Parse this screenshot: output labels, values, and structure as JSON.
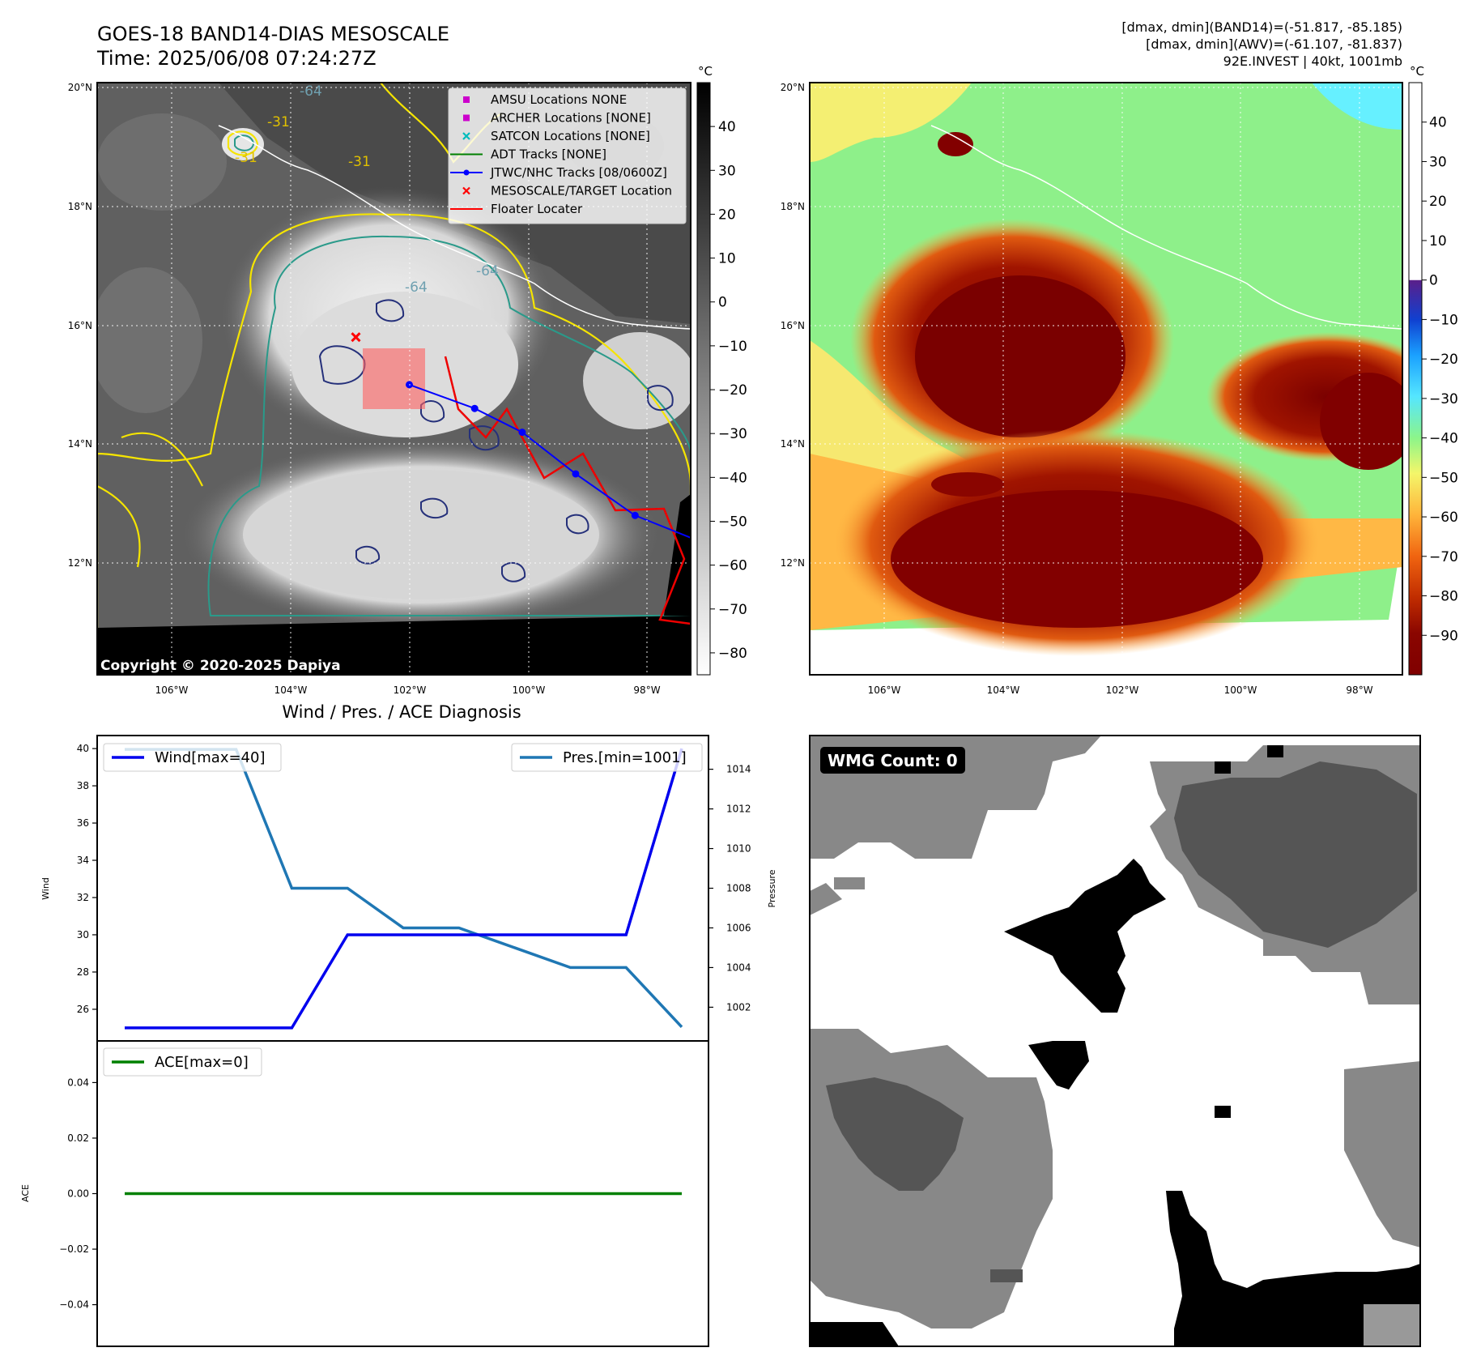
{
  "header": {
    "title": "GOES-18 BAND14-DIAS MESOSCALE",
    "time": "Time: 2025/06/08 07:24:27Z",
    "stats_band14": "[dmax, dmin](BAND14)=(-51.817, -85.185)",
    "stats_awv": "[dmax, dmin](AWV)=(-61.107, -81.837)",
    "storm_info": "92E.INVEST | 40kt, 1001mb"
  },
  "ir_panel": {
    "copyright": "Copyright © 2020-2025 Dapiya",
    "lat_labels": [
      "20°N",
      "18°N",
      "16°N",
      "14°N",
      "12°N"
    ],
    "lon_labels": [
      "106°W",
      "104°W",
      "102°W",
      "100°W",
      "98°W"
    ],
    "contour_labels": [
      "-64",
      "-31",
      "-31",
      "-31",
      "-64",
      "-64"
    ],
    "colorbar": {
      "unit": "°C",
      "ticks": [
        "40",
        "30",
        "20",
        "10",
        "0",
        "−10",
        "−20",
        "−30",
        "−40",
        "−50",
        "−60",
        "−70",
        "−80"
      ],
      "range": [
        -85,
        50
      ],
      "colors": [
        "#000000",
        "#ffffff"
      ]
    },
    "legend": [
      {
        "label": "AMSU Locations NONE",
        "marker": "square",
        "color": "#cc00cc"
      },
      {
        "label": "ARCHER Locations [NONE]",
        "marker": "square",
        "color": "#cc00cc"
      },
      {
        "label": "SATCON Locations [NONE]",
        "marker": "x",
        "color": "#00bbbb"
      },
      {
        "label": "ADT Tracks [NONE]",
        "marker": "line",
        "color": "#008000"
      },
      {
        "label": "JTWC/NHC Tracks [08/0600Z]",
        "marker": "line-dot",
        "color": "#0000ff"
      },
      {
        "label": "MESOSCALE/TARGET Location",
        "marker": "x",
        "color": "#ff0000"
      },
      {
        "label": "Floater Locater",
        "marker": "line",
        "color": "#ff0000"
      }
    ],
    "track_jtwc": [
      [
        -102.0,
        15.0
      ],
      [
        -100.9,
        14.6
      ],
      [
        -100.1,
        14.2
      ],
      [
        -99.2,
        13.5
      ],
      [
        -98.2,
        12.8
      ],
      [
        -97.2,
        12.4
      ]
    ],
    "target_location": [
      -102.9,
      15.8
    ]
  },
  "awv_panel": {
    "lat_labels": [
      "20°N",
      "18°N",
      "16°N",
      "14°N",
      "12°N"
    ],
    "lon_labels": [
      "106°W",
      "104°W",
      "102°W",
      "100°W",
      "98°W"
    ],
    "colorbar": {
      "unit": "°C",
      "ticks": [
        "40",
        "30",
        "20",
        "10",
        "0",
        "−10",
        "−20",
        "−30",
        "−40",
        "−50",
        "−60",
        "−70",
        "−80",
        "−90"
      ],
      "range": [
        -100,
        50
      ]
    }
  },
  "diag_title": "Wind / Pres. / ACE Diagnosis",
  "chart_data": [
    {
      "type": "line",
      "x": [
        0,
        1,
        2,
        3,
        4,
        5,
        6,
        7,
        8,
        9,
        10
      ],
      "series": [
        {
          "name": "Wind[max=40]",
          "axis": "left",
          "color": "#0000ee",
          "values": [
            25,
            25,
            25,
            25,
            30,
            30,
            30,
            30,
            30,
            30,
            40
          ]
        },
        {
          "name": "Pres.[min=1001]",
          "axis": "right",
          "color": "#1f77b4",
          "values": [
            1015,
            1015,
            1015,
            1008,
            1008,
            1006,
            1006,
            1005,
            1004,
            1004,
            1001
          ]
        }
      ],
      "ylabel": "Wind",
      "ylabel_right": "Pressure",
      "ylim": [
        24.3,
        40.7
      ],
      "ylim_right": [
        1000.3,
        1015.7
      ],
      "yticks": [
        26,
        28,
        30,
        32,
        34,
        36,
        38,
        40
      ],
      "yticks_right": [
        1002,
        1004,
        1006,
        1008,
        1010,
        1012,
        1014
      ],
      "legend": [
        "top-left",
        "top-right"
      ]
    },
    {
      "type": "line",
      "x": [
        0,
        1,
        2,
        3,
        4,
        5,
        6,
        7,
        8,
        9,
        10
      ],
      "series": [
        {
          "name": "ACE[max=0]",
          "color": "#008000",
          "values": [
            0,
            0,
            0,
            0,
            0,
            0,
            0,
            0,
            0,
            0,
            0
          ]
        }
      ],
      "ylabel": "ACE",
      "ylim": [
        -0.055,
        0.055
      ],
      "yticks": [
        "0.04",
        "0.02",
        "0.00",
        "−0.02",
        "−0.04"
      ],
      "ytick_values": [
        0.04,
        0.02,
        0.0,
        -0.02,
        -0.04
      ],
      "legend": "top-left"
    }
  ],
  "wmg_panel": {
    "label": "WMG Count: 0"
  }
}
